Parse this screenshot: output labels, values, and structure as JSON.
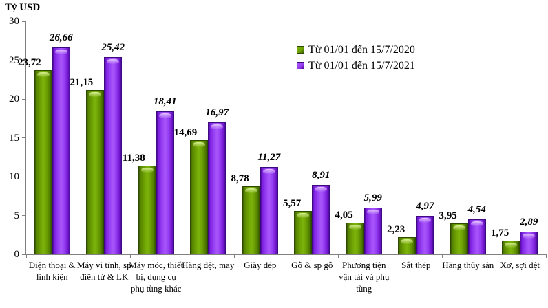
{
  "page": {
    "background": "#ffffff"
  },
  "chart_data": {
    "type": "bar",
    "title": "",
    "y_axis_title": "Tỷ USD",
    "categories": [
      "Điện thoại & linh kiện",
      "Máy vi tính, sp điện tử & LK",
      "Máy móc, thiết bị, dụng cụ phụ tùng khác",
      "Hàng dệt, may",
      "Giày dép",
      "Gỗ & sp gỗ",
      "Phương tiện vận tải và phụ tùng",
      "Sắt thép",
      "Hàng thủy sản",
      "Xơ, sợi dệt"
    ],
    "series": [
      {
        "name": "Từ 01/01 đến 15/7/2020",
        "color": "#6da203",
        "values": [
          23.72,
          21.15,
          11.38,
          14.69,
          8.78,
          5.57,
          4.05,
          2.23,
          3.95,
          1.75
        ]
      },
      {
        "name": "Từ 01/01 đến 15/7/2021",
        "color": "#9840f4",
        "values": [
          26.66,
          25.42,
          18.41,
          16.97,
          11.27,
          8.91,
          5.99,
          4.97,
          4.54,
          2.89
        ]
      }
    ],
    "ylim": [
      0,
      30
    ],
    "yticks": [
      0,
      5,
      10,
      15,
      20,
      25,
      30
    ],
    "grid": false,
    "legend_position": "top-right",
    "decimal_separator": ",",
    "axis_color": "#808080"
  }
}
